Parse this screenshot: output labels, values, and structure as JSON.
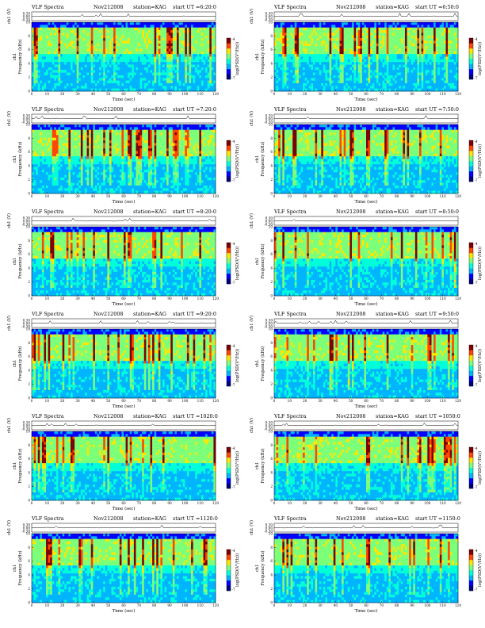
{
  "page": {
    "bg_color": "#ffffff"
  },
  "common": {
    "xlabel": "Time (sec)",
    "ylabel_top": "ch1 (V)",
    "ylabel_channel": "ch1",
    "ylabel_freq": "Frequency (kHz)",
    "colorbar_label": "log(PSD(V²/Hz))",
    "x_ticks": [
      "0",
      "10",
      "20",
      "30",
      "40",
      "50",
      "60",
      "70",
      "80",
      "90",
      "100",
      "110",
      "120"
    ],
    "y_ticks": [
      "0",
      "2",
      "4",
      "6",
      "8",
      "10"
    ],
    "top_ticks": [
      "0.30",
      "0.00",
      "-0.30"
    ],
    "cbar_ticks": [
      "-4",
      "-7"
    ],
    "colormap": [
      "#00007f",
      "#0000ff",
      "#00b4ff",
      "#00ffd9",
      "#7cff79",
      "#ffe600",
      "#ff4600",
      "#7f0000"
    ]
  },
  "panels": [
    {
      "title": "VLF Spectra",
      "date": "Nov212008",
      "station": "station=KAG",
      "start": "start UT =6:20:0"
    },
    {
      "title": "VLF Spectra",
      "date": "Nov212008",
      "station": "station=KAG",
      "start": "start UT =6:50:0"
    },
    {
      "title": "VLF Spectra",
      "date": "Nov212008",
      "station": "station=KAG",
      "start": "start UT =7:20:0"
    },
    {
      "title": "VLF Spectra",
      "date": "Nov212008",
      "station": "station=KAG",
      "start": "start UT =7:50:0"
    },
    {
      "title": "VLF Spectra",
      "date": "Nov212008",
      "station": "station=KAG",
      "start": "start UT =8:20:0"
    },
    {
      "title": "VLF Spectra",
      "date": "Nov212008",
      "station": "station=KAG",
      "start": "start UT =8:50:0"
    },
    {
      "title": "VLF Spectra",
      "date": "Nov212008",
      "station": "station=KAG",
      "start": "start UT =9:20:0"
    },
    {
      "title": "VLF Spectra",
      "date": "Nov212008",
      "station": "station=KAG",
      "start": "start UT =9:50:0"
    },
    {
      "title": "VLF Spectra",
      "date": "Nov212008",
      "station": "station=KAG",
      "start": "start UT =1020:0"
    },
    {
      "title": "VLF Spectra",
      "date": "Nov212008",
      "station": "station=KAG",
      "start": "start UT =1050:0"
    },
    {
      "title": "VLF Spectra",
      "date": "Nov212008",
      "station": "station=KAG",
      "start": "start UT =1120:0"
    },
    {
      "title": "VLF Spectra",
      "date": "Nov212008",
      "station": "station=KAG",
      "start": "start UT =1150:0"
    }
  ],
  "chart_data": {
    "type": "heatmap",
    "panel_count": 12,
    "xlabel": "Time (sec)",
    "ylabel": "Frequency (kHz)",
    "xlim": [
      0,
      120
    ],
    "ylim": [
      0,
      10
    ],
    "top_trace_ylabel": "ch1 (V)",
    "top_trace_ylim": [
      -0.3,
      0.3
    ],
    "colorbar_label": "log(PSD(V²/Hz))",
    "colorbar_range": [
      -7,
      -4
    ],
    "features": "Broadband VLF emission from about 5 to 9 kHz with bright vertical impulsive bursts throughout; quieter (cyan/blue) background below about 5 kHz and above 9 kHz."
  }
}
